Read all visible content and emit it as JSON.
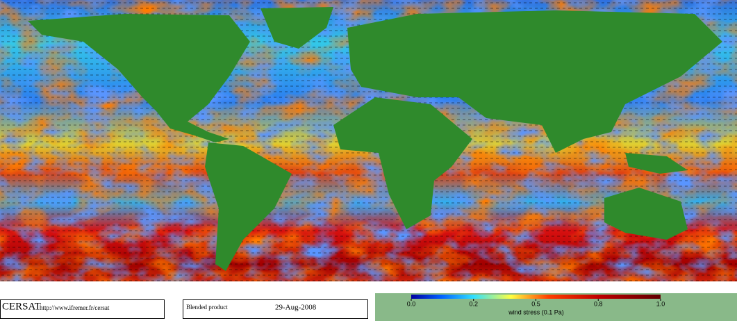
{
  "footer": {
    "logo": "CERSAT",
    "url": "http://www.ifremer.fr/cersat",
    "product": "Blended product",
    "date": "29-Aug-2008"
  },
  "colorbar": {
    "label": "wind stress (0.1 Pa)",
    "ticks": [
      {
        "value": 0,
        "label": "0.0"
      },
      0.2,
      0.5,
      0.8,
      {
        "value": 1,
        "label": "1.0"
      }
    ]
  }
}
